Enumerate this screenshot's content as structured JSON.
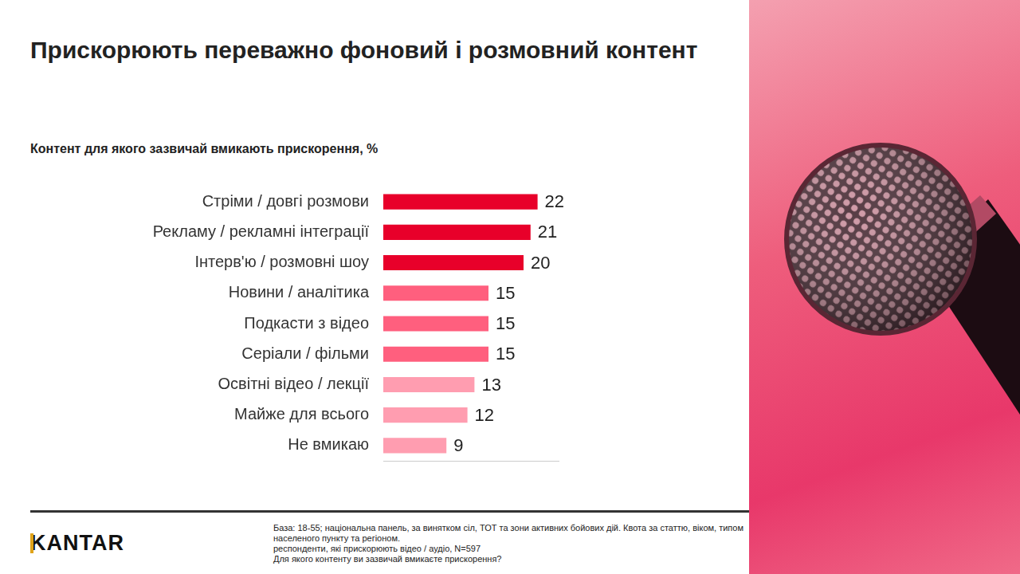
{
  "header": {
    "title": "Прискорюють переважно фоновий і розмовний контент"
  },
  "chart_data": {
    "type": "bar",
    "orientation": "horizontal",
    "title": "Контент для якого зазвичай вмикають прискорення, %",
    "categories": [
      "Стріми / довгі розмови",
      "Рекламу / рекламні інтеграції",
      "Інтерв'ю / розмовні шоу",
      "Новини / аналітика",
      "Подкасти з відео",
      "Серіали / фільми",
      "Освітні відео / лекції",
      "Майже для всього",
      "Не вмикаю"
    ],
    "values": [
      22,
      21,
      20,
      15,
      15,
      15,
      13,
      12,
      9
    ],
    "colors": [
      "#e8002a",
      "#e8002a",
      "#e8002a",
      "#ff5f7e",
      "#ff5f7e",
      "#ff5f7e",
      "#ff9db0",
      "#ff9db0",
      "#ff9db0"
    ],
    "xlim": [
      0,
      25
    ],
    "data_labels": true,
    "tick_labels": "y",
    "grid": false
  },
  "footnote": [
    "База: 18-55; національна панель, за винятком сіл, ТОТ та зони активних бойових дій. Квота за статтю, віком, типом",
    "населеного пункту та регіоном.",
    "респонденти, які прискорюють відео / аудіо, N=597",
    "Для якого контенту ви зазвичай вмикаєте прискорення?"
  ],
  "logo": "KANTAR"
}
